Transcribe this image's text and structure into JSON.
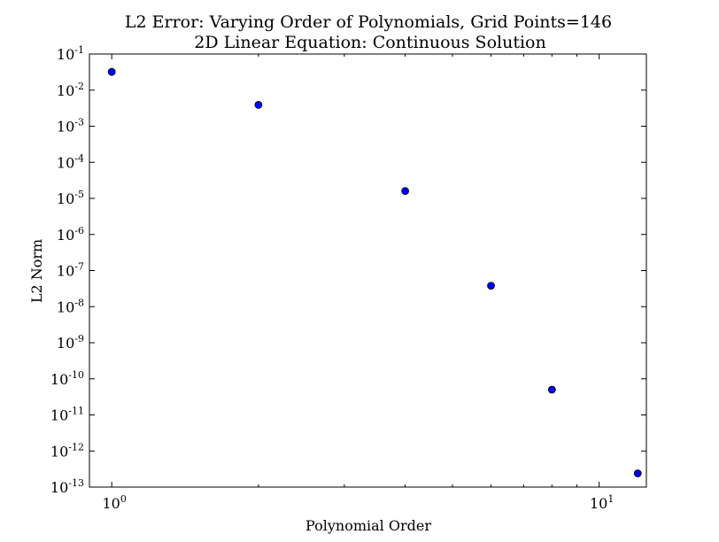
{
  "chart_data": {
    "type": "scatter",
    "title": "L2 Error: Varying Order of Polynomials,  Grid Points=146",
    "subtitle": "2D Linear Equation: Continuous Solution",
    "xlabel": "Polynomial Order",
    "ylabel": "L2 Norm",
    "xscale": "log",
    "yscale": "log",
    "xlim": [
      0.9,
      12.5
    ],
    "ylim": [
      1e-13,
      0.1
    ],
    "x_ticks": [
      {
        "value": 1,
        "base": "10",
        "exp": "0"
      },
      {
        "value": 10,
        "base": "10",
        "exp": "1"
      }
    ],
    "y_ticks": [
      {
        "value": 0.1,
        "base": "10",
        "exp": "-1"
      },
      {
        "value": 0.01,
        "base": "10",
        "exp": "-2"
      },
      {
        "value": 0.001,
        "base": "10",
        "exp": "-3"
      },
      {
        "value": 0.0001,
        "base": "10",
        "exp": "-4"
      },
      {
        "value": 1e-05,
        "base": "10",
        "exp": "-5"
      },
      {
        "value": 1e-06,
        "base": "10",
        "exp": "-6"
      },
      {
        "value": 1e-07,
        "base": "10",
        "exp": "-7"
      },
      {
        "value": 1e-08,
        "base": "10",
        "exp": "-8"
      },
      {
        "value": 1e-09,
        "base": "10",
        "exp": "-9"
      },
      {
        "value": 1e-10,
        "base": "10",
        "exp": "-10"
      },
      {
        "value": 1e-11,
        "base": "10",
        "exp": "-11"
      },
      {
        "value": 1e-12,
        "base": "10",
        "exp": "-12"
      },
      {
        "value": 1e-13,
        "base": "10",
        "exp": "-13"
      }
    ],
    "series": [
      {
        "color": "#0000ff",
        "points": [
          {
            "x": 1,
            "y": 0.032
          },
          {
            "x": 2,
            "y": 0.0039
          },
          {
            "x": 4,
            "y": 1.6e-05
          },
          {
            "x": 6,
            "y": 3.8e-08
          },
          {
            "x": 8,
            "y": 5e-11
          },
          {
            "x": 12,
            "y": 2.4e-13
          }
        ]
      }
    ],
    "grid": false,
    "legend": "none"
  }
}
